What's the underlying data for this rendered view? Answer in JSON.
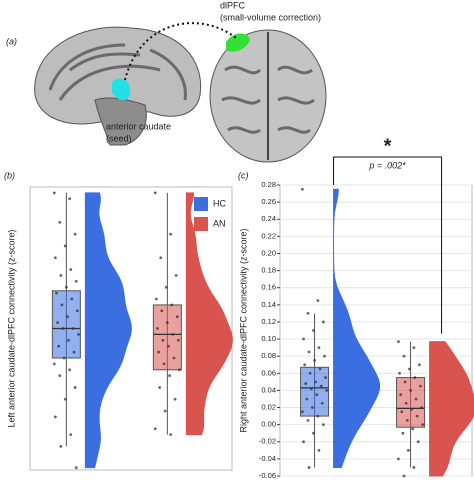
{
  "figure": {
    "panel_a": {
      "label": "(a)",
      "region_label": "dlPFC",
      "region_note": "(small-volume correction)",
      "seed_label": "anterior caudate",
      "seed_note": "(seed)"
    }
  },
  "chart_data": [
    {
      "type": "raincloud",
      "panel_label": "(b)",
      "y_label": "Left anterior caudate-dlPFC connectivity (z-score)",
      "ylim": [
        -0.08,
        0.16
      ],
      "legend": "top-right",
      "series": [
        {
          "name": "HC",
          "color": "#3b6ee0",
          "box": {
            "whisker_low": -0.06,
            "q1": 0.015,
            "median": 0.04,
            "q3": 0.072,
            "whisker_high": 0.155
          },
          "points": [
            0.155,
            0.15,
            0.13,
            0.12,
            0.11,
            0.1,
            0.09,
            0.085,
            0.08,
            0.075,
            0.07,
            0.065,
            0.06,
            0.055,
            0.05,
            0.045,
            0.04,
            0.04,
            0.035,
            0.03,
            0.025,
            0.02,
            0.015,
            0.01,
            0.005,
            0,
            -0.01,
            -0.02,
            -0.035,
            -0.05,
            -0.06,
            -0.078
          ]
        },
        {
          "name": "AN",
          "color": "#d9534f",
          "box": {
            "whisker_low": -0.05,
            "q1": 0.005,
            "median": 0.035,
            "q3": 0.06,
            "whisker_high": 0.155
          },
          "points": [
            0.155,
            0.12,
            0.1,
            0.085,
            0.075,
            0.065,
            0.06,
            0.055,
            0.05,
            0.045,
            0.04,
            0.035,
            0.03,
            0.03,
            0.025,
            0.02,
            0.015,
            0.01,
            0.005,
            0,
            -0.01,
            -0.02,
            -0.03,
            -0.045,
            -0.05
          ]
        }
      ]
    },
    {
      "type": "raincloud",
      "panel_label": "(c)",
      "y_label": "Right anterior caudate-dlPFC connectivity (z-score)",
      "ylim": [
        -0.06,
        0.28
      ],
      "yticks": [
        0.28,
        0.26,
        0.24,
        0.22,
        {
          "value": 0.2,
          "label": "0.20"
        },
        0.18,
        0.16,
        0.14,
        0.12,
        {
          "value": 0.1,
          "label": "0.10"
        },
        0.08,
        0.06,
        0.04,
        0.02,
        {
          "value": 0,
          "label": "0.00"
        },
        -0.02,
        -0.04,
        -0.06
      ],
      "grid": true,
      "annotation": {
        "label": "*",
        "text": "p = .002*"
      },
      "series": [
        {
          "name": "HC",
          "color": "#3b6ee0",
          "box": {
            "whisker_low": -0.05,
            "q1": 0.01,
            "median": 0.043,
            "q3": 0.067,
            "whisker_high": 0.13
          },
          "points": [
            0.275,
            0.145,
            0.13,
            0.12,
            0.11,
            0.1,
            0.09,
            0.085,
            0.08,
            0.075,
            0.07,
            0.065,
            0.06,
            0.055,
            0.05,
            0.048,
            0.045,
            0.042,
            0.04,
            0.035,
            0.03,
            0.025,
            0.02,
            0.015,
            0.01,
            0.005,
            0,
            -0.01,
            -0.02,
            -0.03,
            -0.05
          ]
        },
        {
          "name": "AN",
          "color": "#d9534f",
          "box": {
            "whisker_low": -0.05,
            "q1": -0.003,
            "median": 0.019,
            "q3": 0.055,
            "whisker_high": 0.097
          },
          "points": [
            0.097,
            0.09,
            0.08,
            0.07,
            0.065,
            0.06,
            0.055,
            0.05,
            0.045,
            0.04,
            0.035,
            0.03,
            0.025,
            0.02,
            0.018,
            0.015,
            0.01,
            0.005,
            0,
            -0.005,
            -0.01,
            -0.02,
            -0.03,
            -0.04,
            -0.05,
            -0.06
          ]
        }
      ]
    }
  ]
}
